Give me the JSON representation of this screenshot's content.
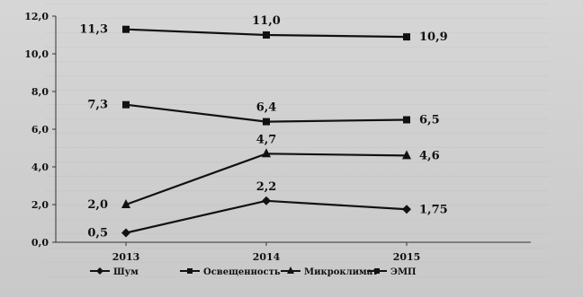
{
  "chart_data": {
    "type": "line",
    "title": "",
    "xlabel": "",
    "ylabel": "",
    "categories": [
      "2013",
      "2014",
      "2015"
    ],
    "ylim": [
      0,
      12
    ],
    "yticks": [
      "0,0",
      "2,0",
      "4,0",
      "6,0",
      "8,0",
      "10,0",
      "12,0"
    ],
    "grid": false,
    "legend_position": "bottom",
    "series": [
      {
        "name": "Шум",
        "values": [
          0.5,
          2.2,
          1.75
        ],
        "labels": [
          "0,5",
          "2,2",
          "1,75"
        ],
        "marker": "diamond"
      },
      {
        "name": "Освещенность",
        "values": [
          7.3,
          6.4,
          6.5
        ],
        "labels": [
          "7,3",
          "6,4",
          "6,5"
        ],
        "marker": "square"
      },
      {
        "name": "Микроклимат",
        "values": [
          2.0,
          4.7,
          4.6
        ],
        "labels": [
          "2,0",
          "4,7",
          "4,6"
        ],
        "marker": "triangle"
      },
      {
        "name": "ЭМП",
        "values": [
          11.3,
          11.0,
          10.9
        ],
        "labels": [
          "11,3",
          "11,0",
          "10,9"
        ],
        "marker": "square"
      }
    ]
  }
}
